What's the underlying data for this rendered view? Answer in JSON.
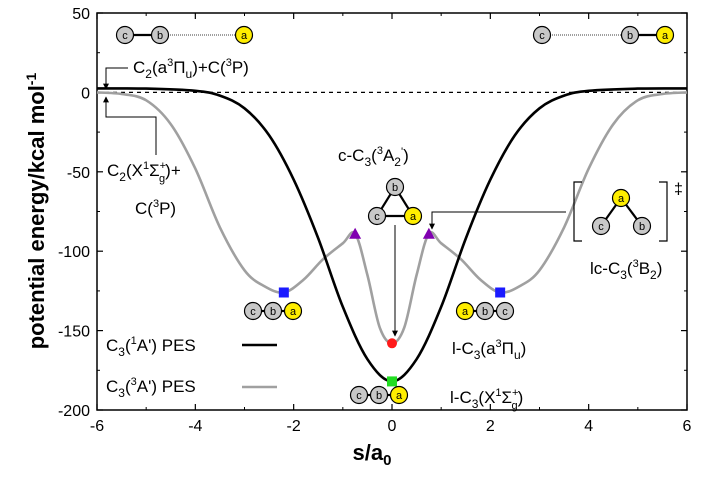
{
  "chart_data": {
    "type": "line",
    "xlabel": "s/a",
    "xlabel_sub": "0",
    "ylabel": "potential energy/kcal mol",
    "ylabel_sup": "-1",
    "xlim": [
      -6,
      6
    ],
    "ylim": [
      -200,
      50
    ],
    "xticks": [
      "-6",
      "-4",
      "-2",
      "0",
      "2",
      "4",
      "6"
    ],
    "yticks": [
      "50",
      "0",
      "-50",
      "-100",
      "-150",
      "-200"
    ],
    "series": [
      {
        "name": "C3(1A') PES",
        "color": "#000000",
        "x": [
          -6,
          -5,
          -4,
          -3.5,
          -3,
          -2.5,
          -2,
          -1.5,
          -1,
          -0.5,
          0,
          0.5,
          1,
          1.5,
          2,
          2.5,
          3,
          3.5,
          4,
          5,
          6
        ],
        "y": [
          2.5,
          2.4,
          1,
          -2,
          -10,
          -27,
          -55,
          -92,
          -135,
          -168,
          -182,
          -168,
          -135,
          -92,
          -55,
          -27,
          -10,
          -2,
          1,
          2.4,
          2.5
        ]
      },
      {
        "name": "C3(3A') PES",
        "color": "#a0a0a0",
        "x": [
          -6,
          -5.5,
          -5,
          -4.5,
          -4,
          -3.5,
          -3,
          -2.6,
          -2.2,
          -1.8,
          -1.4,
          -1.0,
          -0.75,
          -0.5,
          -0.25,
          0,
          0.25,
          0.5,
          0.75,
          1.0,
          1.4,
          1.8,
          2.2,
          2.6,
          3,
          3.5,
          4,
          4.5,
          5,
          5.5,
          6
        ],
        "y": [
          0,
          -1,
          -5,
          -20,
          -48,
          -85,
          -112,
          -122,
          -126,
          -118,
          -105,
          -95,
          -89,
          -115,
          -148,
          -158,
          -148,
          -115,
          -89,
          -95,
          -105,
          -118,
          -126,
          -122,
          -112,
          -85,
          -48,
          -20,
          -5,
          -1,
          0
        ]
      }
    ],
    "asymptote_y": 0,
    "markers": [
      {
        "shape": "square",
        "color": "#1a1aff",
        "x": -2.2,
        "y": -126
      },
      {
        "shape": "square",
        "color": "#1a1aff",
        "x": 2.2,
        "y": -126
      },
      {
        "shape": "triangle",
        "color": "#8000b0",
        "x": -0.75,
        "y": -89
      },
      {
        "shape": "triangle",
        "color": "#8000b0",
        "x": 0.75,
        "y": -89
      },
      {
        "shape": "circle",
        "color": "#ff1a1a",
        "x": 0,
        "y": -158
      },
      {
        "shape": "square",
        "color": "#22dd22",
        "x": 0,
        "y": -182
      }
    ],
    "legend": [
      {
        "label": "C3(1A') PES",
        "color": "#000000"
      },
      {
        "label": "C3(3A') PES",
        "color": "#a0a0a0"
      }
    ],
    "annotations": {
      "c2_a_state": "C2(a3Πu)+C(3P)",
      "c2_x_state_line1": "C2(X1Σg+)+",
      "c2_x_state_line2": "C(3P)",
      "c_c3": "c-C3(3A2')",
      "lc_c3": "lc-C3(3B2)",
      "l_c3_a": "l-C3(a3Πu)",
      "l_c3_x": "l-C3(X1Σg+)",
      "ts_dagger": "‡"
    },
    "atom_labels": {
      "a": "a",
      "b": "b",
      "c": "c"
    }
  }
}
